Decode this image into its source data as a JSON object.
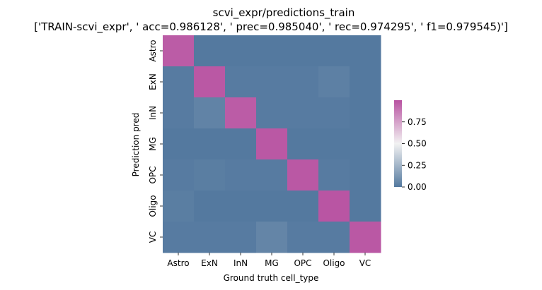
{
  "chart_data": {
    "type": "heatmap",
    "title": "scvi_expr/predictions_train",
    "subtitle": "['TRAIN-scvi_expr', ' acc=0.986128', '  prec=0.985040', ' rec=0.974295', ' f1=0.979545)']",
    "xlabel": "Ground truth cell_type",
    "ylabel": "Prediction pred",
    "x_categories": [
      "Astro",
      "ExN",
      "InN",
      "MG",
      "OPC",
      "Oligo",
      "VC"
    ],
    "y_categories": [
      "Astro",
      "ExN",
      "InN",
      "MG",
      "OPC",
      "Oligo",
      "VC"
    ],
    "values": [
      [
        0.97,
        0.0,
        0.0,
        0.0,
        0.0,
        0.0,
        0.0
      ],
      [
        0.01,
        0.98,
        0.01,
        0.01,
        0.01,
        0.03,
        0.0
      ],
      [
        0.01,
        0.04,
        0.97,
        0.01,
        0.01,
        0.01,
        0.0
      ],
      [
        0.0,
        0.0,
        0.0,
        0.98,
        0.0,
        0.0,
        0.0
      ],
      [
        0.01,
        0.02,
        0.01,
        0.01,
        0.98,
        0.01,
        0.0
      ],
      [
        0.02,
        0.0,
        0.0,
        0.0,
        0.0,
        0.99,
        0.0
      ],
      [
        0.01,
        0.01,
        0.01,
        0.05,
        0.01,
        0.01,
        0.98
      ]
    ],
    "colorbar": {
      "range": [
        0,
        1
      ],
      "ticks": [
        0.0,
        0.25,
        0.5,
        0.75
      ],
      "tick_labels": [
        "0.00",
        "0.25",
        "0.50",
        "0.75"
      ],
      "low_color": "#54799f",
      "mid_color": "#f2f2f2",
      "high_color": "#b852a1"
    }
  }
}
